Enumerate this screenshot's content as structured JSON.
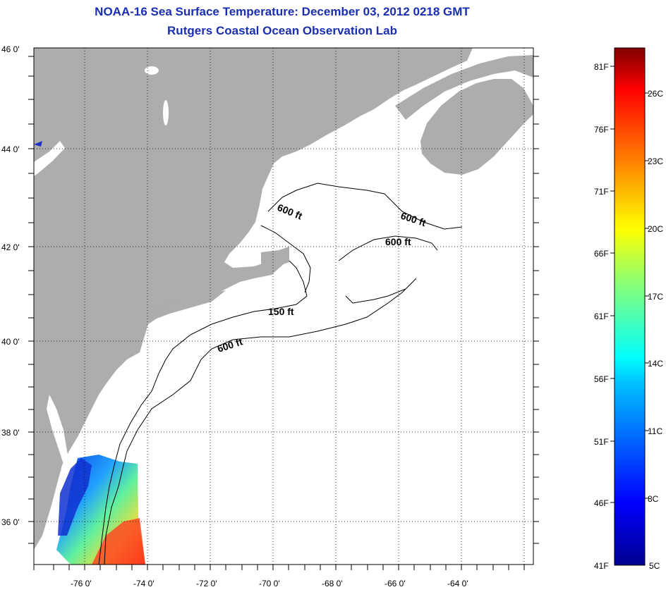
{
  "title": "NOAA-16 Sea Surface Temperature:  December 03, 2012 0218 GMT",
  "subtitle": "Rutgers Coastal Ocean Observation Lab",
  "map": {
    "lon_ticks": [
      "-76 0'",
      "-74 0'",
      "-72 0'",
      "-70 0'",
      "-68 0'",
      "-66 0'",
      "-64 0'"
    ],
    "lat_ticks": [
      "46 0'",
      "44 0'",
      "42 0'",
      "40 0'",
      "38 0'",
      "36 0'"
    ],
    "contour_labels": [
      "600 ft",
      "600 ft",
      "600 ft",
      "150 ft",
      "600 ft"
    ]
  },
  "colorbar": {
    "fahrenheit": [
      "81F",
      "76F",
      "71F",
      "66F",
      "61F",
      "56F",
      "51F",
      "46F",
      "41F"
    ],
    "celsius": [
      "26C",
      "23C",
      "20C",
      "17C",
      "14C",
      "11C",
      "8C",
      "5C"
    ]
  },
  "colors": {
    "land": "#adadad",
    "ocean": "#ffffff",
    "title": "#1a2fb0"
  }
}
